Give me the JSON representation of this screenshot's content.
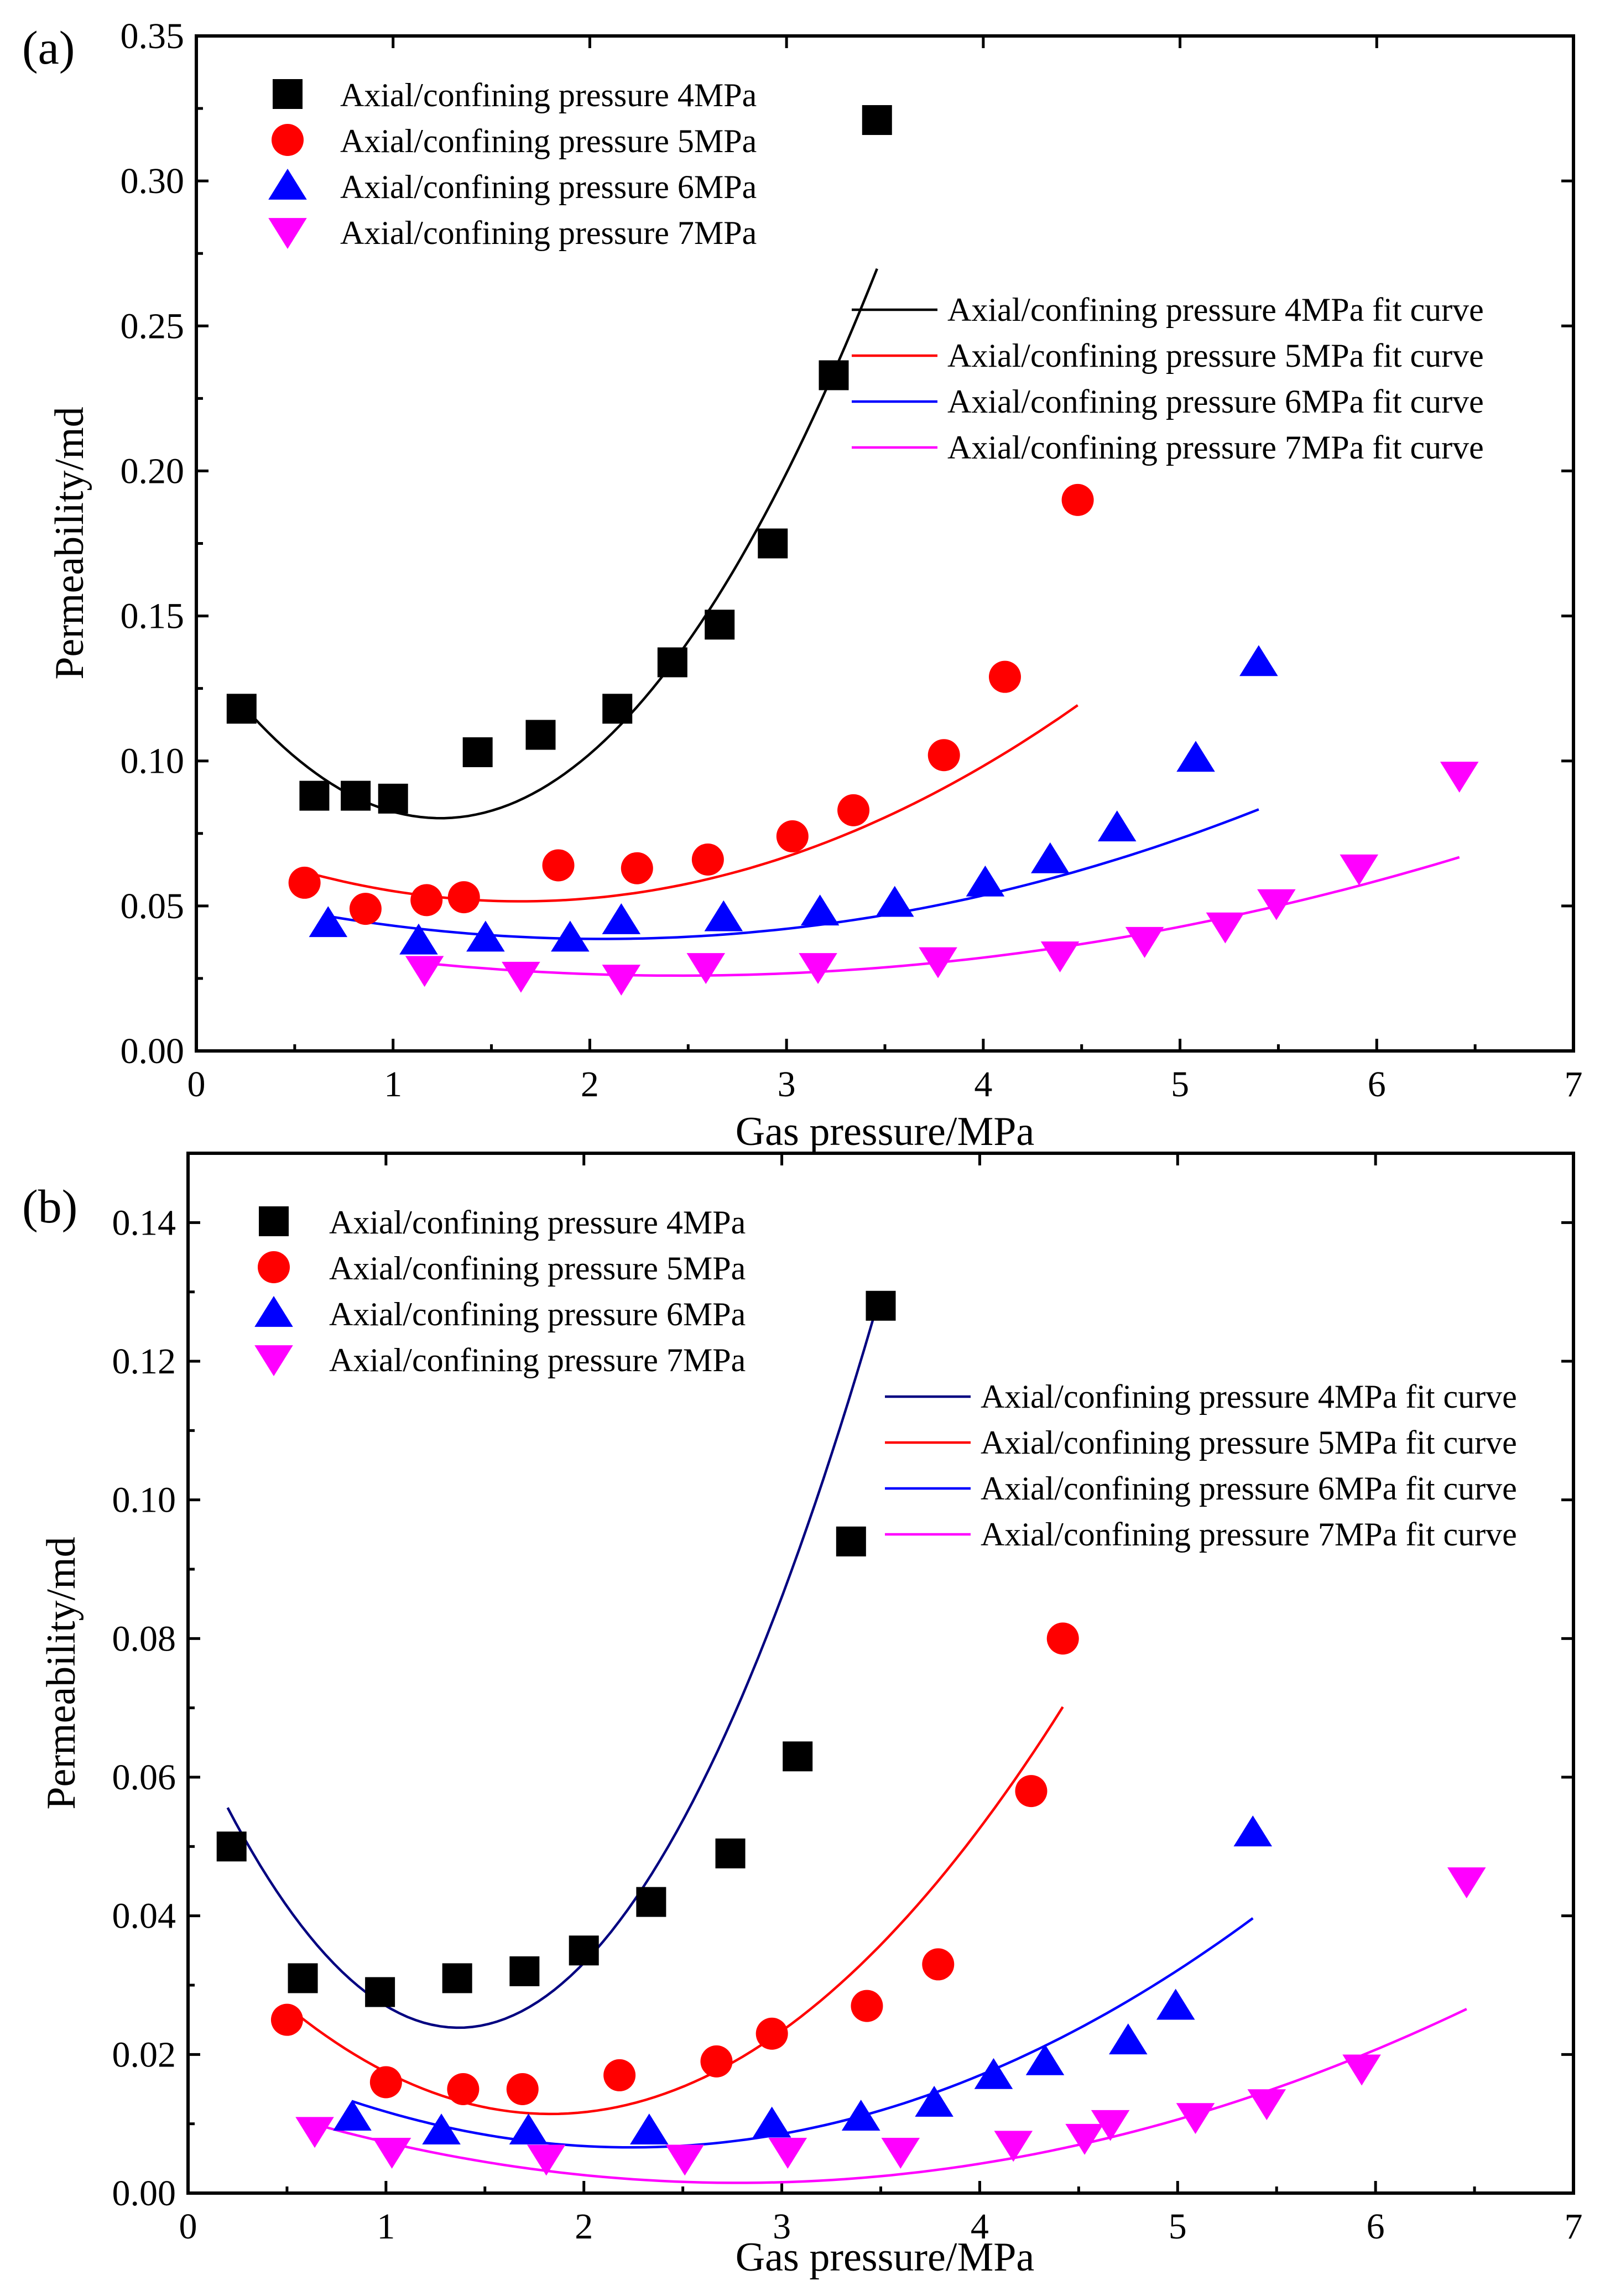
{
  "chart_data": [
    {
      "type": "scatter",
      "panel_label": "(a)",
      "xlabel": "Gas pressure/MPa",
      "ylabel": "Permeability/md",
      "xlim": [
        0,
        7
      ],
      "ylim": [
        0,
        0.35
      ],
      "xticks": [
        0,
        1,
        2,
        3,
        4,
        5,
        6,
        7
      ],
      "yticks": [
        0.0,
        0.05,
        0.1,
        0.15,
        0.2,
        0.25,
        0.3,
        0.35
      ],
      "ytick_labels": [
        "0.00",
        "0.05",
        "0.10",
        "0.15",
        "0.20",
        "0.25",
        "0.30",
        "0.35"
      ],
      "series": [
        {
          "name": "Axial/confining pressure 4MPa",
          "marker": "square",
          "color": "#000000",
          "x": [
            0.23,
            0.6,
            0.81,
            1.0,
            1.43,
            1.75,
            2.14,
            2.42,
            2.66,
            2.93,
            3.24,
            3.46
          ],
          "y": [
            0.118,
            0.088,
            0.088,
            0.087,
            0.103,
            0.109,
            0.118,
            0.134,
            0.147,
            0.175,
            0.233,
            0.321
          ]
        },
        {
          "name": "Axial/confining pressure 5MPa",
          "marker": "circle",
          "color": "#ff0000",
          "x": [
            0.55,
            0.86,
            1.17,
            1.36,
            1.84,
            2.24,
            2.6,
            3.03,
            3.34,
            3.8,
            4.11,
            4.48
          ],
          "y": [
            0.058,
            0.049,
            0.052,
            0.053,
            0.064,
            0.063,
            0.066,
            0.074,
            0.083,
            0.102,
            0.129,
            0.19
          ]
        },
        {
          "name": "Axial/confining pressure 6MPa",
          "marker": "triangle-up",
          "color": "#0000ff",
          "x": [
            0.67,
            1.13,
            1.47,
            1.9,
            2.16,
            2.68,
            3.17,
            3.55,
            4.01,
            4.34,
            4.68,
            5.08,
            5.4
          ],
          "y": [
            0.044,
            0.038,
            0.039,
            0.039,
            0.045,
            0.046,
            0.048,
            0.051,
            0.058,
            0.066,
            0.077,
            0.101,
            0.134
          ]
        },
        {
          "name": "Axial/confining pressure 7MPa",
          "marker": "triangle-down",
          "color": "#ff00ff",
          "x": [
            1.16,
            1.65,
            2.16,
            2.59,
            3.16,
            3.77,
            4.39,
            4.82,
            5.23,
            5.49,
            5.91,
            6.42
          ],
          "y": [
            0.028,
            0.026,
            0.025,
            0.029,
            0.029,
            0.031,
            0.033,
            0.038,
            0.043,
            0.051,
            0.063,
            0.095
          ]
        }
      ],
      "fits": [
        {
          "name": "Axial/confining pressure 4MPa fit curve",
          "color": "#000000",
          "x_range": [
            0.2,
            3.46
          ],
          "coef": [
            0.1396,
            -0.0956,
            0.0385
          ]
        },
        {
          "name": "Axial/confining pressure 5MPa fit curve",
          "color": "#ff0000",
          "x_range": [
            0.55,
            4.48
          ],
          "coef": [
            0.07447,
            -0.02778,
            0.00843
          ]
        },
        {
          "name": "Axial/confining pressure 6MPa fit curve",
          "color": "#0000ff",
          "x_range": [
            0.67,
            5.4
          ],
          "coef": [
            0.05577,
            -0.01661,
            0.00402
          ]
        },
        {
          "name": "Axial/confining pressure 7MPa fit curve",
          "color": "#ff00ff",
          "x_range": [
            1.16,
            6.42
          ],
          "coef": [
            0.04151,
            -0.01269,
            0.00259
          ]
        }
      ]
    },
    {
      "type": "scatter",
      "panel_label": "(b)",
      "xlabel": "Gas pressure/MPa",
      "ylabel": "Permeability/md",
      "xlim": [
        0,
        7
      ],
      "ylim": [
        0,
        0.15
      ],
      "xticks": [
        0,
        1,
        2,
        3,
        4,
        5,
        6,
        7
      ],
      "yticks": [
        0.0,
        0.02,
        0.04,
        0.06,
        0.08,
        0.1,
        0.12,
        0.14
      ],
      "ytick_labels": [
        "0.00",
        "0.02",
        "0.04",
        "0.06",
        "0.08",
        "0.10",
        "0.12",
        "0.14"
      ],
      "series": [
        {
          "name": "Axial/confining pressure 4MPa",
          "marker": "square",
          "color": "#000000",
          "x": [
            0.22,
            0.58,
            0.97,
            1.36,
            1.7,
            2.0,
            2.34,
            2.74,
            3.08,
            3.35,
            3.5
          ],
          "y": [
            0.05,
            0.031,
            0.029,
            0.031,
            0.032,
            0.035,
            0.042,
            0.049,
            0.063,
            0.094,
            0.128
          ]
        },
        {
          "name": "Axial/confining pressure 5MPa",
          "marker": "circle",
          "color": "#ff0000",
          "x": [
            0.5,
            1.0,
            1.39,
            1.69,
            2.18,
            2.67,
            2.95,
            3.43,
            3.79,
            4.26,
            4.42
          ],
          "y": [
            0.025,
            0.016,
            0.015,
            0.015,
            0.017,
            0.019,
            0.023,
            0.027,
            0.033,
            0.058,
            0.08
          ]
        },
        {
          "name": "Axial/confining pressure 6MPa",
          "marker": "triangle-up",
          "color": "#0000ff",
          "x": [
            0.83,
            1.28,
            1.72,
            2.33,
            2.95,
            3.4,
            3.77,
            4.07,
            4.33,
            4.75,
            4.99,
            5.38
          ],
          "y": [
            0.011,
            0.009,
            0.009,
            0.009,
            0.01,
            0.011,
            0.013,
            0.017,
            0.019,
            0.022,
            0.027,
            0.052
          ]
        },
        {
          "name": "Axial/confining pressure 7MPa",
          "marker": "triangle-down",
          "color": "#ff00ff",
          "x": [
            0.64,
            1.03,
            1.81,
            2.51,
            3.03,
            3.6,
            4.17,
            4.53,
            4.66,
            5.09,
            5.45,
            5.93,
            6.46
          ],
          "y": [
            0.009,
            0.006,
            0.005,
            0.005,
            0.006,
            0.006,
            0.007,
            0.008,
            0.01,
            0.011,
            0.013,
            0.018,
            0.045
          ]
        }
      ],
      "fits": [
        {
          "name": "Axial/confining pressure 4MPa fit curve",
          "color": "#000080",
          "x_range": [
            0.2,
            3.5
          ],
          "coef": [
            0.0674,
            -0.0637,
            0.0233
          ]
        },
        {
          "name": "Axial/confining pressure 5MPa fit curve",
          "color": "#ff0000",
          "x_range": [
            0.5,
            4.42
          ],
          "coef": [
            0.04079,
            -0.03208,
            0.00876
          ]
        },
        {
          "name": "Axial/confining pressure 6MPa fit curve",
          "color": "#0000ff",
          "x_range": [
            0.83,
            5.38
          ],
          "coef": [
            0.02339,
            -0.015,
            0.00335
          ]
        },
        {
          "name": "Axial/confining pressure 7MPa fit curve",
          "color": "#ff00ff",
          "x_range": [
            0.64,
            6.46
          ],
          "coef": [
            0.01576,
            -0.01028,
            0.00185
          ]
        }
      ]
    }
  ]
}
